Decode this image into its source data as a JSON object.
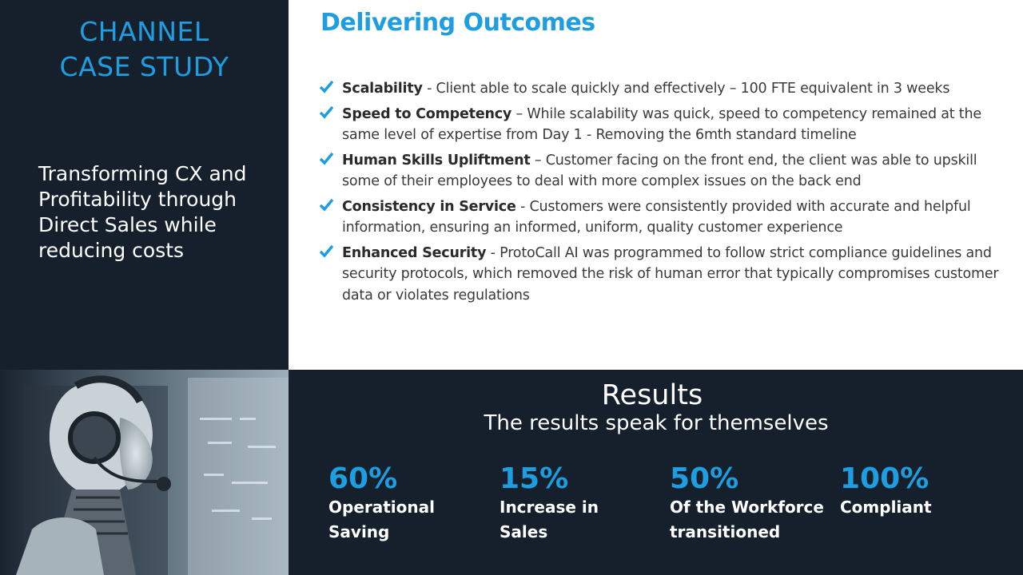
{
  "header": {
    "title_line1": "CHANNEL",
    "title_line2": "CASE STUDY",
    "subtitle": "Transforming CX and Profitability through Direct Sales while reducing costs"
  },
  "outcomes": {
    "title": "Delivering Outcomes",
    "items": [
      {
        "heading": "Scalability",
        "text": " - Client able to scale quickly and effectively – 100 FTE equivalent in 3 weeks"
      },
      {
        "heading": "Speed to Competency",
        "text": " – While scalability was quick, speed to competency remained at the same level of expertise from Day 1 - Removing the 6mth standard timeline"
      },
      {
        "heading": "Human Skills Upliftment",
        "text": " – Customer facing on the front end, the client was able to upskill some of their employees to deal with more complex issues on the back end"
      },
      {
        "heading": "Consistency in Service",
        "text": " - Customers were consistently provided with accurate and helpful information, ensuring an informed, uniform, quality customer experience"
      },
      {
        "heading": "Enhanced Security",
        "text": " - ProtoCall AI was programmed to follow strict compliance guidelines and security protocols, which removed the risk of human error that typically compromises customer data or violates regulations"
      }
    ]
  },
  "results": {
    "title": "Results",
    "subtitle": "The results speak for themselves",
    "stats": [
      {
        "value": "60%",
        "label": "Operational\nSaving"
      },
      {
        "value": "15%",
        "label": "Increase in\nSales"
      },
      {
        "value": "50%",
        "label": "Of the Workforce\ntransitioned"
      },
      {
        "value": "100%",
        "label": "Compliant"
      }
    ]
  },
  "colors": {
    "accent": "#1e9ee0",
    "dark_panel": "#16202c"
  }
}
